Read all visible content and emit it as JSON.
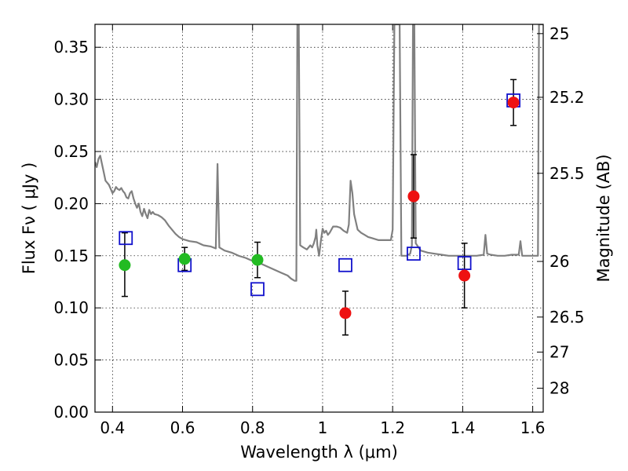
{
  "chart_data": {
    "type": "scatter",
    "xlabel": "Wavelength  λ (μm)",
    "ylabel": "Flux  Fν  ( μJy )",
    "y2label": "Magnitude (AB)",
    "xlim": [
      0.35,
      1.63
    ],
    "ylim": [
      0.0,
      0.372
    ],
    "grid": true,
    "xticks": [
      {
        "value": 0.4,
        "label": "0.4"
      },
      {
        "value": 0.6,
        "label": "0.6"
      },
      {
        "value": 0.8,
        "label": "0.8"
      },
      {
        "value": 1.0,
        "label": "1"
      },
      {
        "value": 1.2,
        "label": "1.2"
      },
      {
        "value": 1.4,
        "label": "1.4"
      },
      {
        "value": 1.6,
        "label": "1.6"
      }
    ],
    "yticks": [
      {
        "value": 0.0,
        "label": "0.00"
      },
      {
        "value": 0.05,
        "label": "0.05"
      },
      {
        "value": 0.1,
        "label": "0.10"
      },
      {
        "value": 0.15,
        "label": "0.15"
      },
      {
        "value": 0.2,
        "label": "0.20"
      },
      {
        "value": 0.25,
        "label": "0.25"
      },
      {
        "value": 0.3,
        "label": "0.30"
      },
      {
        "value": 0.35,
        "label": "0.35"
      }
    ],
    "y2ticks": [
      {
        "mag": 25,
        "label": "25"
      },
      {
        "mag": 25.2,
        "label": "25.2"
      },
      {
        "mag": 25.5,
        "label": "25.5"
      },
      {
        "mag": 26,
        "label": "26"
      },
      {
        "mag": 26.5,
        "label": "26.5"
      },
      {
        "mag": 27,
        "label": "27"
      },
      {
        "mag": 28,
        "label": "28"
      }
    ],
    "series": [
      {
        "marker": "circle",
        "color": "#22bb22",
        "points": [
          {
            "x": 0.435,
            "y": 0.141,
            "err_low": 0.03,
            "err_high": 0.031
          },
          {
            "x": 0.606,
            "y": 0.147,
            "err_low": 0.011,
            "err_high": 0.011
          },
          {
            "x": 0.814,
            "y": 0.146,
            "err_low": 0.017,
            "err_high": 0.017
          }
        ]
      },
      {
        "marker": "circle",
        "color": "#ee1111",
        "points": [
          {
            "x": 1.065,
            "y": 0.095,
            "err_low": 0.021,
            "err_high": 0.021
          },
          {
            "x": 1.26,
            "y": 0.207,
            "err_low": 0.04,
            "err_high": 0.04
          },
          {
            "x": 1.405,
            "y": 0.131,
            "err_low": 0.031,
            "err_high": 0.031
          },
          {
            "x": 1.545,
            "y": 0.297,
            "err_low": 0.022,
            "err_high": 0.022
          }
        ]
      },
      {
        "marker": "open-square",
        "color": "#1111cc",
        "points": [
          {
            "x": 0.438,
            "y": 0.167
          },
          {
            "x": 0.606,
            "y": 0.141
          },
          {
            "x": 0.814,
            "y": 0.118
          },
          {
            "x": 1.065,
            "y": 0.141
          },
          {
            "x": 1.26,
            "y": 0.152
          },
          {
            "x": 1.405,
            "y": 0.143
          },
          {
            "x": 1.545,
            "y": 0.299
          }
        ]
      },
      {
        "marker": "line",
        "color": "#808080",
        "points": [
          [
            0.35,
            0.24
          ],
          [
            0.355,
            0.235
          ],
          [
            0.36,
            0.243
          ],
          [
            0.365,
            0.246
          ],
          [
            0.37,
            0.238
          ],
          [
            0.375,
            0.23
          ],
          [
            0.38,
            0.222
          ],
          [
            0.385,
            0.22
          ],
          [
            0.39,
            0.218
          ],
          [
            0.395,
            0.214
          ],
          [
            0.4,
            0.21
          ],
          [
            0.405,
            0.212
          ],
          [
            0.41,
            0.216
          ],
          [
            0.415,
            0.214
          ],
          [
            0.42,
            0.213
          ],
          [
            0.425,
            0.215
          ],
          [
            0.43,
            0.212
          ],
          [
            0.435,
            0.21
          ],
          [
            0.44,
            0.206
          ],
          [
            0.445,
            0.205
          ],
          [
            0.45,
            0.21
          ],
          [
            0.455,
            0.212
          ],
          [
            0.46,
            0.205
          ],
          [
            0.465,
            0.2
          ],
          [
            0.47,
            0.196
          ],
          [
            0.475,
            0.2
          ],
          [
            0.48,
            0.192
          ],
          [
            0.485,
            0.188
          ],
          [
            0.49,
            0.195
          ],
          [
            0.495,
            0.19
          ],
          [
            0.5,
            0.186
          ],
          [
            0.505,
            0.194
          ],
          [
            0.51,
            0.19
          ],
          [
            0.515,
            0.192
          ],
          [
            0.52,
            0.19
          ],
          [
            0.53,
            0.189
          ],
          [
            0.54,
            0.187
          ],
          [
            0.55,
            0.184
          ],
          [
            0.56,
            0.179
          ],
          [
            0.57,
            0.175
          ],
          [
            0.58,
            0.171
          ],
          [
            0.59,
            0.168
          ],
          [
            0.6,
            0.166
          ],
          [
            0.62,
            0.164
          ],
          [
            0.64,
            0.163
          ],
          [
            0.66,
            0.16
          ],
          [
            0.68,
            0.159
          ],
          [
            0.695,
            0.157
          ],
          [
            0.7,
            0.238
          ],
          [
            0.705,
            0.158
          ],
          [
            0.72,
            0.155
          ],
          [
            0.74,
            0.153
          ],
          [
            0.76,
            0.15
          ],
          [
            0.78,
            0.148
          ],
          [
            0.8,
            0.145
          ],
          [
            0.82,
            0.143
          ],
          [
            0.84,
            0.14
          ],
          [
            0.86,
            0.137
          ],
          [
            0.88,
            0.134
          ],
          [
            0.9,
            0.131
          ],
          [
            0.91,
            0.128
          ],
          [
            0.92,
            0.126
          ],
          [
            0.925,
            0.126
          ],
          [
            0.928,
            0.372
          ],
          [
            0.932,
            0.372
          ],
          [
            0.936,
            0.16
          ],
          [
            0.945,
            0.158
          ],
          [
            0.955,
            0.156
          ],
          [
            0.965,
            0.16
          ],
          [
            0.97,
            0.158
          ],
          [
            0.975,
            0.162
          ],
          [
            0.98,
            0.168
          ],
          [
            0.982,
            0.175
          ],
          [
            0.985,
            0.16
          ],
          [
            0.99,
            0.15
          ],
          [
            0.995,
            0.164
          ],
          [
            1.0,
            0.176
          ],
          [
            1.005,
            0.172
          ],
          [
            1.01,
            0.174
          ],
          [
            1.015,
            0.17
          ],
          [
            1.02,
            0.172
          ],
          [
            1.03,
            0.178
          ],
          [
            1.04,
            0.178
          ],
          [
            1.05,
            0.177
          ],
          [
            1.06,
            0.174
          ],
          [
            1.07,
            0.172
          ],
          [
            1.075,
            0.18
          ],
          [
            1.08,
            0.222
          ],
          [
            1.085,
            0.21
          ],
          [
            1.09,
            0.19
          ],
          [
            1.1,
            0.175
          ],
          [
            1.11,
            0.172
          ],
          [
            1.12,
            0.17
          ],
          [
            1.13,
            0.168
          ],
          [
            1.14,
            0.167
          ],
          [
            1.16,
            0.165
          ],
          [
            1.18,
            0.165
          ],
          [
            1.195,
            0.165
          ],
          [
            1.2,
            0.175
          ],
          [
            1.205,
            0.372
          ],
          [
            1.215,
            0.372
          ],
          [
            1.22,
            0.372
          ],
          [
            1.225,
            0.15
          ],
          [
            1.23,
            0.15
          ],
          [
            1.24,
            0.15
          ],
          [
            1.25,
            0.152
          ],
          [
            1.255,
            0.16
          ],
          [
            1.258,
            0.372
          ],
          [
            1.262,
            0.372
          ],
          [
            1.266,
            0.162
          ],
          [
            1.28,
            0.155
          ],
          [
            1.3,
            0.153
          ],
          [
            1.32,
            0.152
          ],
          [
            1.34,
            0.151
          ],
          [
            1.36,
            0.15
          ],
          [
            1.38,
            0.15
          ],
          [
            1.4,
            0.15
          ],
          [
            1.42,
            0.15
          ],
          [
            1.44,
            0.15
          ],
          [
            1.46,
            0.151
          ],
          [
            1.465,
            0.17
          ],
          [
            1.47,
            0.152
          ],
          [
            1.48,
            0.151
          ],
          [
            1.5,
            0.15
          ],
          [
            1.52,
            0.15
          ],
          [
            1.54,
            0.151
          ],
          [
            1.56,
            0.151
          ],
          [
            1.565,
            0.164
          ],
          [
            1.57,
            0.15
          ],
          [
            1.58,
            0.15
          ],
          [
            1.6,
            0.15
          ],
          [
            1.615,
            0.15
          ],
          [
            1.618,
            0.372
          ],
          [
            1.63,
            0.372
          ]
        ]
      }
    ]
  }
}
